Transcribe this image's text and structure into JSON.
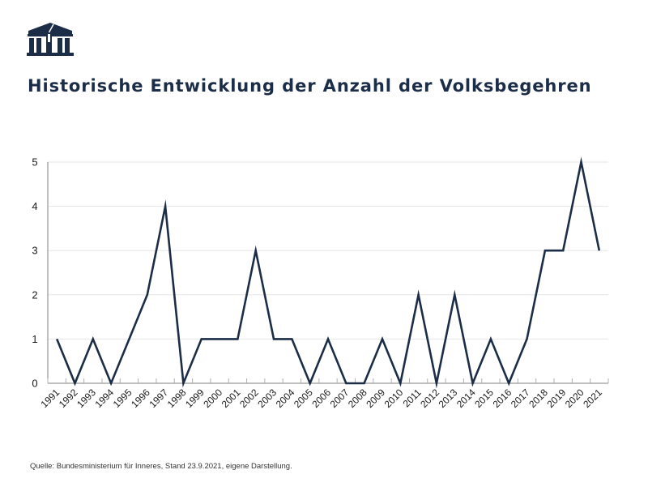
{
  "header": {
    "logo_icon": "parliament-building-icon",
    "title": "Historische Entwicklung der Anzahl der Volksbegehren"
  },
  "colors": {
    "line": "#1b2d47",
    "title": "#1b2d47",
    "grid": "#e6e6e6",
    "axis": "#7f7f7f"
  },
  "chart_data": {
    "type": "line",
    "title": "Historische Entwicklung der Anzahl der Volksbegehren",
    "xlabel": "",
    "ylabel": "",
    "categories": [
      "1991",
      "1992",
      "1993",
      "1994",
      "1995",
      "1996",
      "1997",
      "1998",
      "1999",
      "2000",
      "2001",
      "2002",
      "2003",
      "2004",
      "2005",
      "2006",
      "2007",
      "2008",
      "2009",
      "2010",
      "2011",
      "2012",
      "2013",
      "2014",
      "2015",
      "2016",
      "2017",
      "2018",
      "2019",
      "2020",
      "2021"
    ],
    "series": [
      {
        "name": "Volksbegehren",
        "values": [
          1,
          0,
          1,
          0,
          1,
          2,
          4,
          0,
          1,
          1,
          1,
          3,
          1,
          1,
          0,
          1,
          0,
          0,
          1,
          0,
          2,
          0,
          2,
          0,
          1,
          0,
          1,
          3,
          3,
          5,
          3
        ]
      }
    ],
    "yticks": [
      "0",
      "1",
      "2",
      "3",
      "4",
      "5"
    ],
    "ylim": [
      0,
      5
    ],
    "grid": true,
    "legend": "none"
  },
  "footer": {
    "source": "Quelle: Bundesministerium für Inneres, Stand 23.9.2021, eigene Darstellung."
  }
}
